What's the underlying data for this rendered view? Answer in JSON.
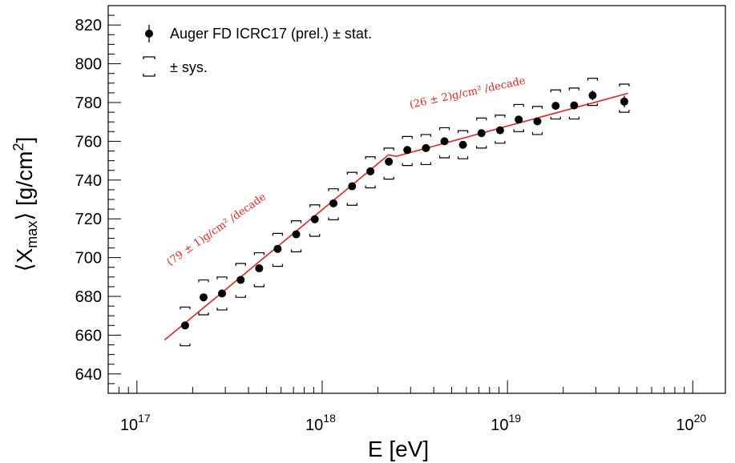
{
  "chart_data": {
    "type": "scatter",
    "xscale": "log",
    "xlim": [
      7e+16,
      1.5e+20
    ],
    "ylim": [
      630,
      830
    ],
    "yticks": [
      640,
      660,
      680,
      700,
      720,
      740,
      760,
      780,
      800,
      820
    ],
    "xticks": [
      {
        "value": 1e+17,
        "base": "10",
        "exp": "17"
      },
      {
        "value": 1e+18,
        "base": "10",
        "exp": "18"
      },
      {
        "value": 1e+19,
        "base": "10",
        "exp": "19"
      },
      {
        "value": 1e+20,
        "base": "10",
        "exp": "20"
      }
    ],
    "xlabel": "E [eV]",
    "ylabel": {
      "open": "⟨X",
      "sub": "max",
      "mid": "⟩ [g/cm",
      "sup": "2",
      "close": "]"
    },
    "series": [
      {
        "name": "Auger FD ICRC17 (prel.) ± stat.",
        "marker": "filled-circle",
        "color": "#000000",
        "x": [
          1.82e+17,
          2.29e+17,
          2.88e+17,
          3.63e+17,
          4.57e+17,
          5.75e+17,
          7.24e+17,
          9.12e+17,
          1.15e+18,
          1.45e+18,
          1.82e+18,
          2.29e+18,
          2.88e+18,
          3.63e+18,
          4.57e+18,
          5.75e+18,
          7.24e+18,
          9.12e+18,
          1.15e+19,
          1.45e+19,
          1.82e+19,
          2.29e+19,
          2.88e+19,
          4.27e+19
        ],
        "y": [
          665,
          679.5,
          681.5,
          688.5,
          694.5,
          704.5,
          712,
          719.8,
          728,
          736.8,
          744.5,
          749.5,
          755.5,
          756.5,
          760,
          758.2,
          764.2,
          765.7,
          771.2,
          770.3,
          778.3,
          778.5,
          783.7,
          780.5
        ],
        "stat_err": [
          1.5,
          1.0,
          1.0,
          1.0,
          1.0,
          1.0,
          1.0,
          1.0,
          1.0,
          1.0,
          1.0,
          1.0,
          1.0,
          1.0,
          1.0,
          1.0,
          1.0,
          1.0,
          1.2,
          1.3,
          1.5,
          1.8,
          2.5,
          3.0
        ],
        "sys_hi": [
          674.5,
          688.5,
          690,
          697,
          702.5,
          712.5,
          719,
          727.2,
          735.5,
          744,
          752,
          756.5,
          762.5,
          763.5,
          767,
          765.5,
          772,
          773.5,
          779,
          778,
          786.5,
          787.5,
          792.5,
          789.5
        ],
        "sys_lo": [
          654.5,
          670.5,
          673,
          679.5,
          685,
          695.5,
          703,
          711,
          719.5,
          727,
          736,
          740.5,
          747.5,
          748,
          751.5,
          751,
          756.5,
          759,
          765,
          763.5,
          771.5,
          771.5,
          778.5,
          775
        ]
      },
      {
        "name": "± sys.",
        "marker": "bracket"
      }
    ],
    "fit": {
      "color": "#e8231c",
      "break_energy": 2.35e+18,
      "segments": [
        {
          "x0": 1.41e+17,
          "y0": 657.5,
          "slope": 79
        },
        {
          "x0": 2.35e+18,
          "y0": 751.5,
          "x1": 4.47e+19,
          "slope": 26
        }
      ]
    },
    "annotations": [
      {
        "text": "(79 ± 1)g/cm² /decade",
        "pos": "lower-left",
        "color": "#e8231c"
      },
      {
        "text": "(26 ± 2)g/cm² /decade",
        "pos": "upper-right",
        "color": "#e8231c"
      }
    ],
    "legend": {
      "placement": "top-left"
    },
    "grid": false
  }
}
